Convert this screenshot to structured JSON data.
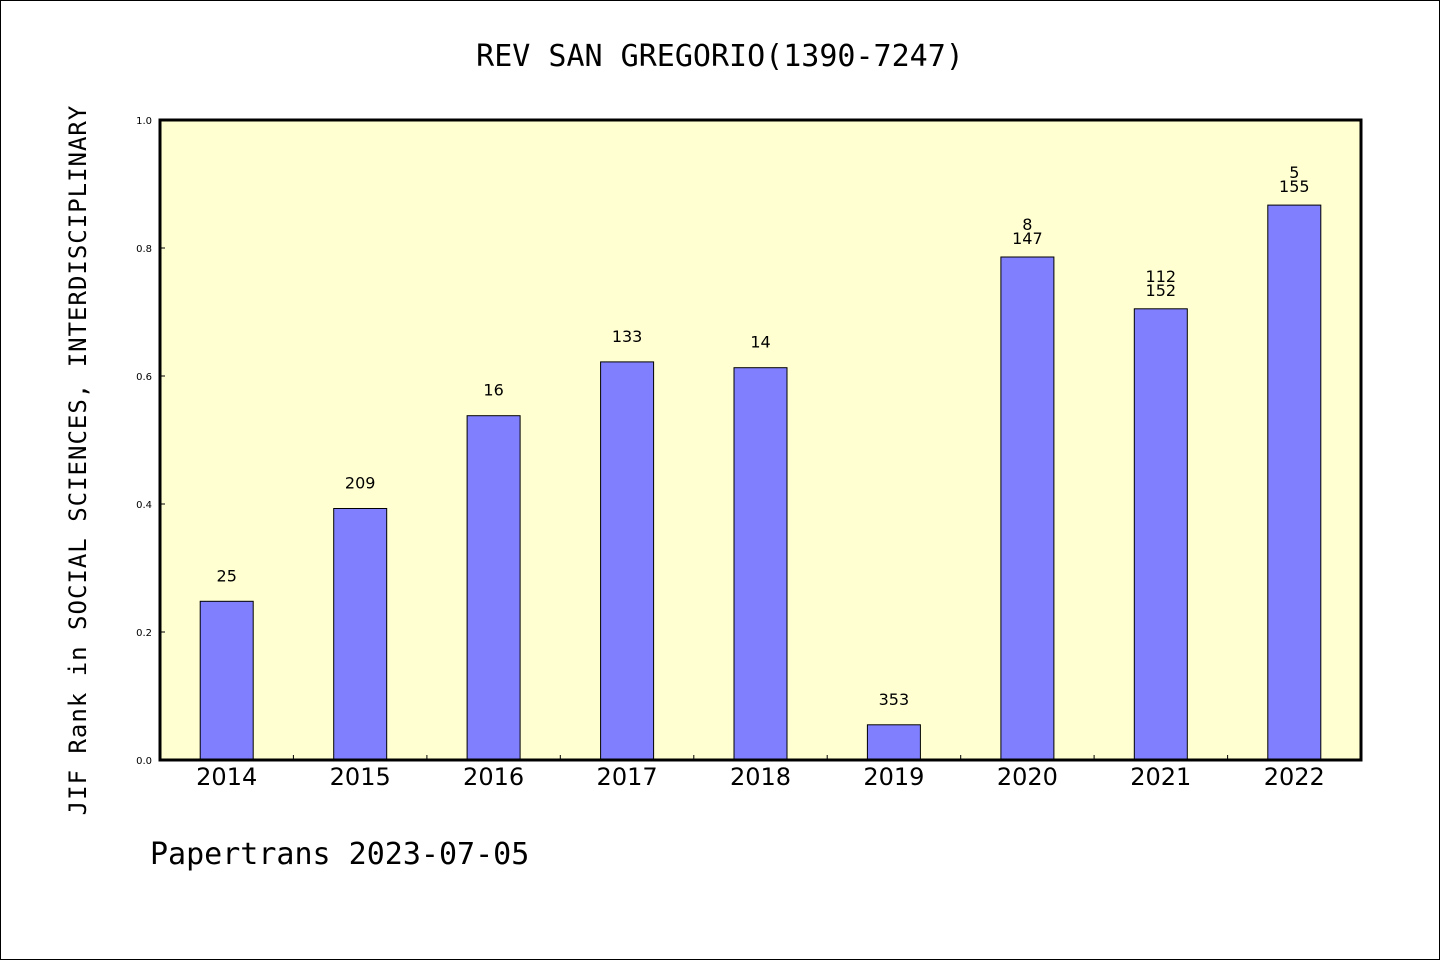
{
  "chart_data": {
    "type": "bar",
    "title": "REV SAN GREGORIO(1390-7247)",
    "xlabel": "",
    "ylabel": "JIF Rank in SOCIAL SCIENCES, INTERDISCIPLINARY",
    "ylim": [
      0.0,
      1.0
    ],
    "yticks": [
      "0.0",
      "0.2",
      "0.4",
      "0.6",
      "0.8",
      "1.0"
    ],
    "categories": [
      "2014",
      "2015",
      "2016",
      "2017",
      "2018",
      "2019",
      "2020",
      "2021",
      "2022"
    ],
    "values": [
      0.248,
      0.393,
      0.538,
      0.622,
      0.613,
      0.055,
      0.786,
      0.705,
      0.867
    ],
    "labels": [
      [
        "25"
      ],
      [
        "209"
      ],
      [
        "16"
      ],
      [
        "133"
      ],
      [
        "14"
      ],
      [
        "353"
      ],
      [
        "8",
        "147"
      ],
      [
        "112",
        "152"
      ],
      [
        "5",
        "155"
      ]
    ],
    "grid": false,
    "colors": {
      "bar": "#8080ff",
      "plot_background": "#ffffd2",
      "frame": "#000000"
    }
  },
  "footer": {
    "text": "Papertrans 2023-07-05"
  }
}
